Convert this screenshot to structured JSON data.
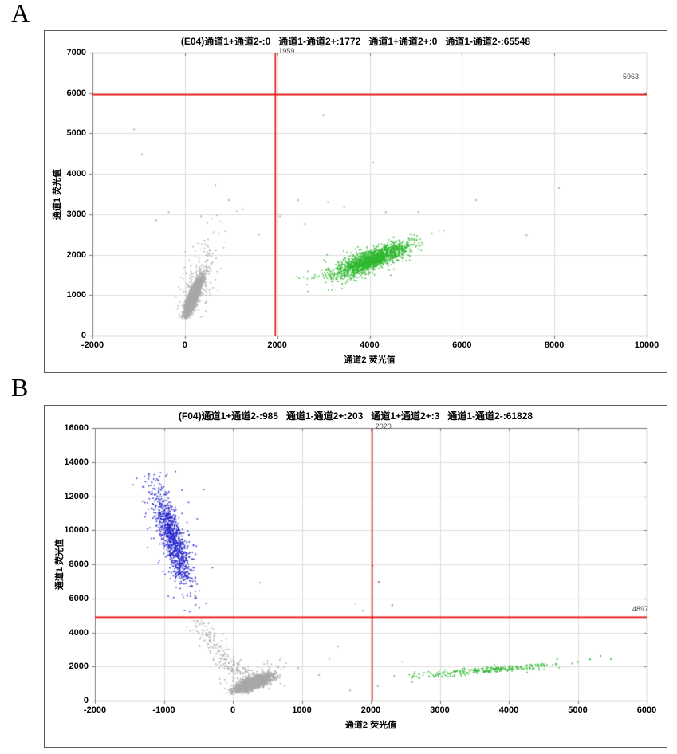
{
  "figure": {
    "panels": [
      {
        "label": "A"
      },
      {
        "label": "B"
      }
    ],
    "background": "#ffffff"
  },
  "colors": {
    "threshold_line": "#e81010",
    "grid": "#dcdcdc",
    "axis": "#7a7a7a",
    "negative_gray": "#a9a9a9",
    "ch1_positive_blue": "#2121cc",
    "ch2_positive_green": "#2eb82e",
    "double_positive_red": "#b34a4a",
    "text": "#000000",
    "threshold_label": "#4a4a4a"
  },
  "chart_data": [
    {
      "type": "scatter",
      "well": "E04",
      "title": "(E04)通道1+通道2-:0   通道1-通道2+:1772   通道1+通道2+:0   通道1-通道2-:65548",
      "xlabel": "通道2 荧光值",
      "ylabel": "通道1 荧光值",
      "xlim": [
        -2000,
        10000
      ],
      "xstep": 2000,
      "ylim": [
        0,
        7000
      ],
      "ystep": 1000,
      "grid": true,
      "quadrant_counts": {
        "ch1pos_ch2neg": 0,
        "ch1neg_ch2pos": 1772,
        "ch1pos_ch2pos": 0,
        "ch1neg_ch2neg": 65548
      },
      "thresholds": {
        "x": 1959,
        "x_label": "1959",
        "y": 5963,
        "y_label": "5963"
      },
      "clusters": [
        {
          "name": "ch1neg-ch2neg-core",
          "color": "#a9a9a9",
          "model": "linear",
          "n": 2600,
          "cx": 170,
          "sx": 95,
          "y0": 980,
          "slope": 2.1,
          "sy": 130,
          "clip_x": [
            -350,
            900
          ],
          "clip_y": [
            430,
            2600
          ]
        },
        {
          "name": "ch1neg-ch2neg-halo",
          "color": "#a9a9a9",
          "model": "linear",
          "n": 230,
          "cx": 260,
          "sx": 240,
          "y0": 1250,
          "slope": 2.0,
          "sy": 480,
          "clip_x": [
            -700,
            1600
          ],
          "clip_y": [
            430,
            3750
          ]
        },
        {
          "name": "ch1neg-ch2pos-core",
          "color": "#2eb82e",
          "model": "linear",
          "n": 1600,
          "cx": 4050,
          "sx": 400,
          "y0": 1900,
          "slope": 0.42,
          "sy": 120,
          "clip_x": [
            2500,
            5500
          ],
          "clip_y": [
            1150,
            2900
          ]
        },
        {
          "name": "ch1neg-ch2pos-halo",
          "color": "#2eb82e",
          "model": "linear",
          "n": 110,
          "cx": 3600,
          "sx": 650,
          "y0": 1720,
          "slope": 0.4,
          "sy": 260,
          "clip_x": [
            2400,
            5600
          ],
          "clip_y": [
            1100,
            3150
          ]
        }
      ],
      "outliers": [
        {
          "color": "#a9a9a9",
          "points": [
            [
              -1100,
              5100
            ],
            [
              3000,
              5450
            ],
            [
              -930,
              4480
            ],
            [
              4080,
              4280
            ],
            [
              6300,
              3350
            ],
            [
              8100,
              3650
            ],
            [
              2450,
              3350
            ],
            [
              3100,
              3300
            ],
            [
              3450,
              3180
            ],
            [
              2060,
              2950
            ],
            [
              4350,
              3050
            ],
            [
              2600,
              2760
            ],
            [
              5060,
              3060
            ],
            [
              1250,
              3120
            ],
            [
              660,
              3720
            ],
            [
              950,
              3350
            ],
            [
              -350,
              3050
            ],
            [
              1600,
              2500
            ],
            [
              5600,
              2600
            ],
            [
              7400,
              2480
            ],
            [
              -620,
              2850
            ],
            [
              350,
              2950
            ]
          ]
        }
      ]
    },
    {
      "type": "scatter",
      "well": "F04",
      "title": "(F04)通道1+通道2-:985   通道1-通道2+:203   通道1+通道2+:3   通道1-通道2-:61828",
      "xlabel": "通道2 荧光值",
      "ylabel": "通道1 荧光值",
      "xlim": [
        -2000,
        6000
      ],
      "xstep": 1000,
      "ylim": [
        0,
        16000
      ],
      "ystep": 2000,
      "grid": true,
      "quadrant_counts": {
        "ch1pos_ch2neg": 985,
        "ch1neg_ch2pos": 203,
        "ch1pos_ch2pos": 3,
        "ch1neg_ch2neg": 61828
      },
      "thresholds": {
        "x": 2020,
        "x_label": "2020",
        "y": 4897,
        "y_label": "4897"
      },
      "clusters": [
        {
          "name": "ch1pos-ch2neg-core",
          "color": "#2121cc",
          "model": "linear_y",
          "n": 950,
          "cy": 9500,
          "sy": 1450,
          "x0": -880,
          "slope": -0.077,
          "sx": 85,
          "clip_y": [
            5000,
            13400
          ],
          "clip_x": [
            -1500,
            -280
          ]
        },
        {
          "name": "ch1pos-ch2neg-halo",
          "color": "#2121cc",
          "model": "linear_y",
          "n": 90,
          "cy": 9800,
          "sy": 2300,
          "x0": -880,
          "slope": -0.077,
          "sx": 170,
          "clip_y": [
            4950,
            13600
          ],
          "clip_x": [
            -1600,
            -150
          ]
        },
        {
          "name": "rain-trail",
          "color": "#a9a9a9",
          "model": "curve",
          "n": 240,
          "x0": -560,
          "dx": 800,
          "sx": 80,
          "y_base": 1400,
          "y_amp": 3500,
          "exp": 1.5,
          "sy": 300,
          "clip_y": [
            600,
            4880
          ]
        },
        {
          "name": "ch1neg-ch2neg-core",
          "color": "#a9a9a9",
          "model": "linear",
          "n": 2700,
          "cx": 280,
          "sx": 120,
          "y0": 1050,
          "slope": 1.4,
          "sy": 160,
          "clip_x": [
            -150,
            700
          ],
          "clip_y": [
            400,
            2200
          ]
        },
        {
          "name": "ch1neg-ch2neg-halo",
          "color": "#a9a9a9",
          "model": "linear",
          "n": 140,
          "cx": 250,
          "sx": 230,
          "y0": 1150,
          "slope": 1.5,
          "sy": 420,
          "clip_x": [
            -450,
            1100
          ],
          "clip_y": [
            400,
            3300
          ]
        },
        {
          "name": "ch1neg-ch2pos-streak",
          "color": "#2eb82e",
          "model": "linear",
          "n": 230,
          "cx": 3750,
          "sx": 480,
          "y0": 1850,
          "slope": 0.3,
          "sy": 95,
          "clip_x": [
            2600,
            4750
          ],
          "clip_y": [
            1200,
            2600
          ]
        },
        {
          "name": "ch1neg-ch2pos-tail",
          "color": "#2eb82e",
          "model": "linear",
          "n": 45,
          "cx": 2900,
          "sx": 380,
          "y0": 1560,
          "slope": 0.3,
          "sy": 110,
          "clip_x": [
            2250,
            3600
          ],
          "clip_y": [
            1100,
            2100
          ]
        }
      ],
      "outliers": [
        {
          "color": "#a9a9a9",
          "points": [
            [
              390,
              6915
            ],
            [
              1520,
              3180
            ],
            [
              1400,
              2450
            ],
            [
              2600,
              1080
            ],
            [
              2460,
              2280
            ],
            [
              1700,
              600
            ],
            [
              2100,
              850
            ],
            [
              -150,
              3900
            ],
            [
              700,
              2500
            ],
            [
              950,
              1900
            ],
            [
              1250,
              1500
            ],
            [
              1780,
              5700
            ],
            [
              1885,
              5280
            ]
          ]
        },
        {
          "color": "#2eb82e",
          "points": [
            [
              5330,
              2620
            ],
            [
              5180,
              2420
            ],
            [
              5000,
              2280
            ],
            [
              4920,
              2180
            ],
            [
              5480,
              2450
            ],
            [
              4700,
              2450
            ]
          ]
        },
        {
          "color": "#b34a4a",
          "points": [
            [
              2025,
              7905
            ],
            [
              2115,
              6960
            ],
            [
              2310,
              5600
            ]
          ]
        }
      ]
    }
  ]
}
